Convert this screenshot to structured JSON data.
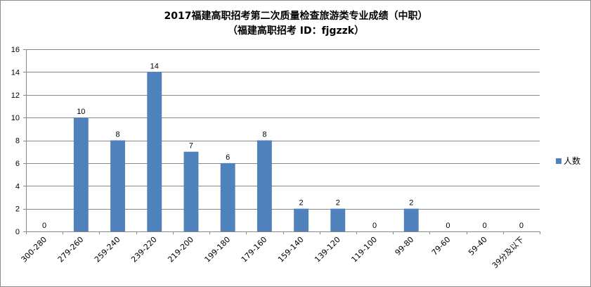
{
  "chart_data": {
    "type": "bar",
    "title": "2017福建高职招考第二次质量检查旅游类专业成绩（中职）",
    "subtitle": "（福建高职招考  ID：fjgzzk）",
    "categories": [
      "300-280",
      "279-260",
      "259-240",
      "239-220",
      "219-200",
      "199-180",
      "179-160",
      "159-140",
      "139-120",
      "119-100",
      "99-80",
      "79-60",
      "59-40",
      "39分及以下"
    ],
    "series": [
      {
        "name": "人数",
        "values": [
          0,
          10,
          8,
          14,
          7,
          6,
          8,
          2,
          2,
          0,
          2,
          0,
          0,
          0
        ]
      }
    ],
    "ylim": [
      0,
      16
    ],
    "yticks": [
      0,
      2,
      4,
      6,
      8,
      10,
      12,
      14,
      16
    ],
    "xlabel": "",
    "ylabel": "",
    "grid": true,
    "legend_position": "right",
    "bar_color": "#4f81bd",
    "grid_color": "#868686"
  }
}
